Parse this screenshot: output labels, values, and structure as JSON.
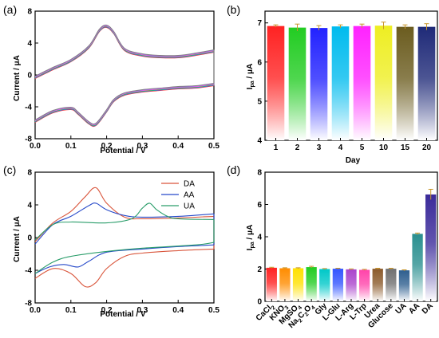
{
  "chart_data": [
    {
      "panel": "(a)",
      "type": "line",
      "xlabel": "Potential / V",
      "ylabel": "Current / μA",
      "xlim": [
        0.0,
        0.5
      ],
      "ylim": [
        -8,
        8
      ],
      "xticks": [
        "0.0",
        "0.1",
        "0.2",
        "0.3",
        "0.4",
        "0.5"
      ],
      "yticks": [
        "-8",
        "-4",
        "0",
        "4",
        "8"
      ],
      "curve_count": 6,
      "curve_colors": [
        "#ff2b2b",
        "#2b7bff",
        "#2bbf2b",
        "#ff66cc",
        "#aa66ff",
        "#808080"
      ],
      "anodic": {
        "x": [
          0.0,
          0.05,
          0.1,
          0.15,
          0.18,
          0.2,
          0.22,
          0.25,
          0.3,
          0.35,
          0.4,
          0.45,
          0.5
        ],
        "y": [
          -0.3,
          0.8,
          1.8,
          3.5,
          5.6,
          6.1,
          5.3,
          3.2,
          2.5,
          2.3,
          2.3,
          2.6,
          3.0
        ]
      },
      "cathodic": {
        "x": [
          0.5,
          0.45,
          0.4,
          0.35,
          0.3,
          0.25,
          0.22,
          0.2,
          0.17,
          0.15,
          0.12,
          0.1,
          0.05,
          0.0
        ],
        "y": [
          -1.2,
          -1.5,
          -1.6,
          -1.8,
          -2.0,
          -2.4,
          -3.2,
          -4.5,
          -6.2,
          -6.0,
          -4.8,
          -4.2,
          -4.6,
          -5.8
        ]
      }
    },
    {
      "panel": "(b)",
      "type": "bar",
      "xlabel": "Day",
      "ylabel": "I",
      "ylabel_sub": "pa",
      "ylabel_unit": " / μA",
      "categories": [
        "1",
        "2",
        "3",
        "4",
        "5",
        "10",
        "15",
        "20"
      ],
      "values": [
        6.92,
        6.88,
        6.87,
        6.91,
        6.92,
        6.93,
        6.9,
        6.9
      ],
      "errors": [
        0.03,
        0.09,
        0.06,
        0.04,
        0.05,
        0.09,
        0.05,
        0.08
      ],
      "ylim": [
        4,
        7.3
      ],
      "yticks": [
        "4",
        "5",
        "6",
        "7"
      ],
      "bar_colors": [
        "#ff2222",
        "#22cc22",
        "#2222ff",
        "#00bbee",
        "#ff22ff",
        "#eeee22",
        "#6b5c1f",
        "#1f2a78"
      ]
    },
    {
      "panel": "(c)",
      "type": "line",
      "xlabel": "Potential / V",
      "ylabel": "Current / μA",
      "xlim": [
        0.0,
        0.5
      ],
      "ylim": [
        -8,
        8
      ],
      "xticks": [
        "0.0",
        "0.1",
        "0.2",
        "0.3",
        "0.4",
        "0.5"
      ],
      "yticks": [
        "-8",
        "-4",
        "0",
        "4",
        "8"
      ],
      "series": [
        {
          "name": "DA",
          "color": "#d9553b",
          "anodic": {
            "x": [
              0.0,
              0.05,
              0.1,
              0.14,
              0.17,
              0.2,
              0.25,
              0.3,
              0.4,
              0.5
            ],
            "y": [
              -0.5,
              1.8,
              3.2,
              5.0,
              6.1,
              4.2,
              2.5,
              2.3,
              2.4,
              2.6
            ]
          },
          "cathodic": {
            "x": [
              0.5,
              0.4,
              0.3,
              0.25,
              0.2,
              0.17,
              0.14,
              0.1,
              0.05,
              0.0
            ],
            "y": [
              -1.4,
              -1.6,
              -1.9,
              -2.3,
              -3.8,
              -5.5,
              -6.0,
              -4.4,
              -3.8,
              -5.0
            ]
          }
        },
        {
          "name": "AA",
          "color": "#2649c9",
          "anodic": {
            "x": [
              0.0,
              0.05,
              0.1,
              0.15,
              0.17,
              0.2,
              0.25,
              0.3,
              0.4,
              0.5
            ],
            "y": [
              -0.8,
              1.6,
              2.6,
              3.9,
              4.2,
              3.4,
              2.7,
              2.5,
              2.6,
              2.9
            ]
          },
          "cathodic": {
            "x": [
              0.5,
              0.4,
              0.3,
              0.2,
              0.15,
              0.12,
              0.08,
              0.04,
              0.0
            ],
            "y": [
              -0.9,
              -1.1,
              -1.4,
              -1.8,
              -2.9,
              -3.6,
              -3.3,
              -3.6,
              -4.4
            ]
          }
        },
        {
          "name": "UA",
          "color": "#2a9d6a",
          "anodic": {
            "x": [
              0.0,
              0.05,
              0.1,
              0.2,
              0.27,
              0.3,
              0.32,
              0.34,
              0.37,
              0.4,
              0.5
            ],
            "y": [
              -0.3,
              1.6,
              1.9,
              1.8,
              2.3,
              3.6,
              4.2,
              3.4,
              2.6,
              2.3,
              2.2
            ]
          },
          "cathodic": {
            "x": [
              0.5,
              0.45,
              0.3,
              0.2,
              0.1,
              0.05,
              0.0
            ],
            "y": [
              -0.6,
              -0.9,
              -1.3,
              -1.7,
              -2.3,
              -3.0,
              -4.4
            ]
          }
        }
      ],
      "legend_position": "top-right"
    },
    {
      "panel": "(d)",
      "type": "bar",
      "ylabel": "I",
      "ylabel_sub": "pa",
      "ylabel_unit": " / μA",
      "categories": [
        {
          "main": "CaCl",
          "sub": "2"
        },
        {
          "main": "KNO",
          "sub": "3"
        },
        {
          "main": "MgSO",
          "sub": "4"
        },
        {
          "main": "Na",
          "sub": "2",
          "main2": "C",
          "sub2": "2",
          "main3": "O",
          "sub3": "4"
        },
        {
          "main": "Gly"
        },
        {
          "main": "L-Glu"
        },
        {
          "main": "L-Arg"
        },
        {
          "main": "L-Trp"
        },
        {
          "main": "Urea"
        },
        {
          "main": "Glucose"
        },
        {
          "main": "UA"
        },
        {
          "main": "AA"
        },
        {
          "main": "DA"
        }
      ],
      "values": [
        2.08,
        2.05,
        2.05,
        2.12,
        2.0,
        2.02,
        1.98,
        1.95,
        2.02,
        2.02,
        1.92,
        4.18,
        6.62
      ],
      "errors": [
        0.03,
        0.03,
        0.03,
        0.05,
        0.03,
        0.03,
        0.03,
        0.03,
        0.03,
        0.03,
        0.03,
        0.05,
        0.32
      ],
      "ylim": [
        0,
        8
      ],
      "yticks": [
        "0",
        "2",
        "4",
        "6",
        "8"
      ],
      "bar_colors": [
        "#ff2222",
        "#ff8c00",
        "#ffe000",
        "#22cc22",
        "#00c8c8",
        "#3355ff",
        "#aa44cc",
        "#ff44aa",
        "#8b5a2b",
        "#707070",
        "#2f5f8f",
        "#2a8f8f",
        "#3a2a9a"
      ]
    }
  ]
}
